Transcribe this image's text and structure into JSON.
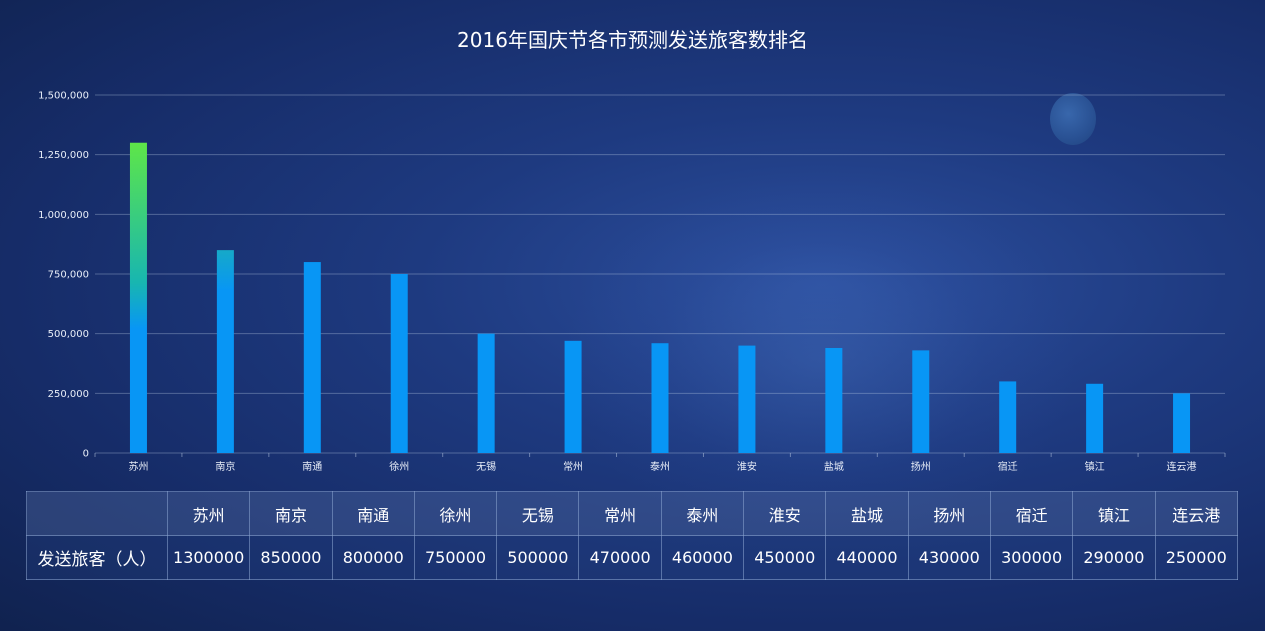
{
  "chart_data": {
    "type": "bar",
    "title": "2016年国庆节各市预测发送旅客数排名",
    "categories": [
      "苏州",
      "南京",
      "南通",
      "徐州",
      "无锡",
      "常州",
      "泰州",
      "淮安",
      "盐城",
      "扬州",
      "宿迁",
      "镇江",
      "连云港"
    ],
    "values": [
      1300000,
      850000,
      800000,
      750000,
      500000,
      470000,
      460000,
      450000,
      440000,
      430000,
      300000,
      290000,
      250000
    ],
    "ylim": [
      0,
      1500000
    ],
    "yticks": [
      "0",
      "250,000",
      "500,000",
      "750,000",
      "1,000,000",
      "1,250,000",
      "1,500,000"
    ],
    "ytick_values": [
      0,
      250000,
      500000,
      750000,
      1000000,
      1250000,
      1500000
    ],
    "grid": true,
    "colors": {
      "bar": "#0896f5",
      "highlight_top": "#5ee648"
    }
  },
  "table": {
    "row_label": "发送旅客（人）",
    "headers": [
      "苏州",
      "南京",
      "南通",
      "徐州",
      "无锡",
      "常州",
      "泰州",
      "淮安",
      "盐城",
      "扬州",
      "宿迁",
      "镇江",
      "连云港"
    ],
    "values": [
      "1300000",
      "850000",
      "800000",
      "750000",
      "500000",
      "470000",
      "460000",
      "450000",
      "440000",
      "430000",
      "300000",
      "290000",
      "250000"
    ]
  }
}
